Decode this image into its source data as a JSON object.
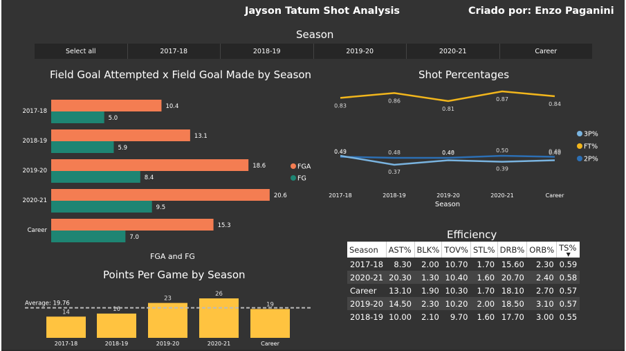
{
  "header": {
    "title": "Jayson Tatum Shot Analysis",
    "author": "Criado por: Enzo Paganini"
  },
  "slicer": {
    "title": "Season",
    "options": [
      "Select all",
      "2017-18",
      "2018-19",
      "2019-20",
      "2020-21",
      "Career"
    ]
  },
  "fg_chart": {
    "title": "Field Goal Attempted x Field Goal Made by Season",
    "footer": "FGA and FG",
    "legend": [
      "FGA",
      "FG"
    ]
  },
  "shot_chart": {
    "title": "Shot Percentages",
    "xlabel": "Season",
    "legend": [
      "3P%",
      "FT%",
      "2P%"
    ]
  },
  "ppg_chart": {
    "title": "Points Per Game by Season",
    "average_label": "Average: 19.76"
  },
  "efficiency": {
    "title": "Efficiency",
    "columns": [
      "Season",
      "AST%",
      "BLK%",
      "TOV%",
      "STL%",
      "DRB%",
      "ORB%",
      "TS%"
    ],
    "sort_indicator": "▼",
    "rows": [
      [
        "2017-18",
        "8.30",
        "2.00",
        "10.70",
        "1.70",
        "15.60",
        "2.30",
        "0.59"
      ],
      [
        "2020-21",
        "20.30",
        "1.30",
        "10.40",
        "1.60",
        "20.70",
        "2.40",
        "0.58"
      ],
      [
        "Career",
        "13.10",
        "1.90",
        "10.30",
        "1.70",
        "18.10",
        "2.70",
        "0.57"
      ],
      [
        "2019-20",
        "14.50",
        "2.30",
        "10.20",
        "2.00",
        "18.50",
        "3.10",
        "0.57"
      ],
      [
        "2018-19",
        "10.00",
        "2.10",
        "9.70",
        "1.60",
        "17.70",
        "3.00",
        "0.55"
      ]
    ]
  },
  "colors": {
    "background": "#333333",
    "fga": "#F47D52",
    "fg": "#1E8573",
    "three_pct": "#7AB4E0",
    "ft_pct": "#F2B61C",
    "two_pct": "#2C6FB4",
    "ppg_bar": "#FFC340"
  },
  "chart_data": [
    {
      "type": "bar",
      "orientation": "horizontal",
      "title": "Field Goal Attempted x Field Goal Made by Season",
      "xlabel": "FGA and FG",
      "categories": [
        "2017-18",
        "2018-19",
        "2019-20",
        "2020-21",
        "Career"
      ],
      "series": [
        {
          "name": "FGA",
          "values": [
            10.4,
            13.1,
            18.6,
            20.6,
            15.3
          ],
          "labels": [
            "10.4",
            "13.1",
            "18.6",
            "20.6",
            "15.3"
          ]
        },
        {
          "name": "FG",
          "values": [
            5.0,
            5.9,
            8.4,
            9.5,
            7.0
          ],
          "labels": [
            "5.0",
            "5.9",
            "8.4",
            "9.5",
            "7.0"
          ]
        }
      ],
      "legend": "right",
      "xlim": [
        0,
        21
      ]
    },
    {
      "type": "line",
      "title": "Shot Percentages",
      "xlabel": "Season",
      "categories": [
        "2017-18",
        "2018-19",
        "2019-20",
        "2020-21",
        "Career"
      ],
      "series": [
        {
          "name": "FT%",
          "values": [
            0.83,
            0.86,
            0.81,
            0.87,
            0.84
          ],
          "labels": [
            "0.83",
            "0.86",
            "0.81",
            "0.87",
            "0.84"
          ]
        },
        {
          "name": "2P%",
          "values": [
            0.49,
            0.48,
            0.48,
            0.5,
            0.49
          ],
          "labels": [
            "0.49",
            "0.48",
            "0.48",
            "0.50",
            "0.49"
          ]
        },
        {
          "name": "3P%",
          "values": [
            0.43,
            0.37,
            0.4,
            0.39,
            0.4
          ],
          "labels": [
            "0.43",
            "0.37",
            "0.40",
            "0.39",
            "0.40"
          ]
        }
      ],
      "legend": "right"
    },
    {
      "type": "bar",
      "title": "Points Per Game by Season",
      "categories": [
        "2017-18",
        "2018-19",
        "2019-20",
        "2020-21",
        "Career"
      ],
      "values": [
        14,
        16,
        23,
        26,
        19
      ],
      "labels": [
        "14",
        "16",
        "23",
        "26",
        "19"
      ],
      "average": 19.76,
      "ylim": [
        0,
        26
      ]
    }
  ]
}
